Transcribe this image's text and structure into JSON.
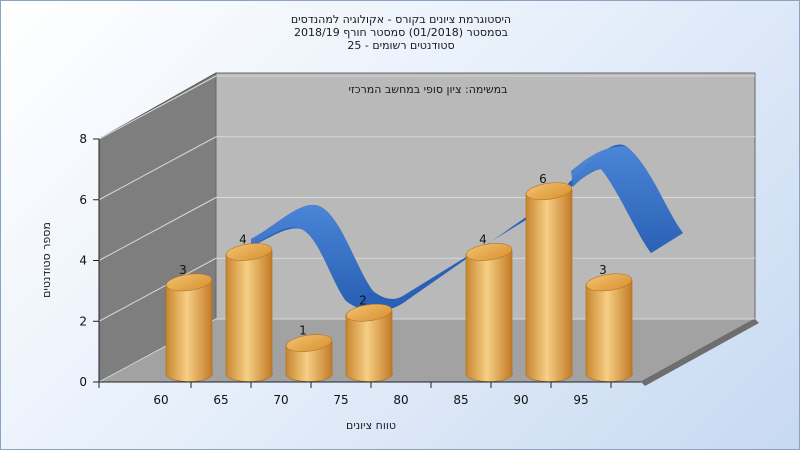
{
  "chart_data": {
    "type": "bar",
    "title_lines": [
      "היסטוגרמת ציונים בקורס - אקולוגיה למהנדסים",
      "בסמסטר  (01/2018)  סמסטר חורף 2018/19",
      "סטודנטים רשומים - 25"
    ],
    "subtitle": "במשימה: ציון סופי במחשב המרכזי",
    "xlabel": "טווח ציונים",
    "ylabel": "מספר סטודנטים",
    "x_ticks": [
      "60",
      "65",
      "70",
      "75",
      "80",
      "85",
      "90",
      "95"
    ],
    "y_ticks": [
      "0",
      "2",
      "4",
      "6",
      "8"
    ],
    "ylim": [
      0,
      8
    ],
    "bars": [
      {
        "x": 60,
        "value": 3,
        "label": "3"
      },
      {
        "x": 65,
        "value": 4,
        "label": "4"
      },
      {
        "x": 70,
        "value": 1,
        "label": "1"
      },
      {
        "x": 75,
        "value": 2,
        "label": "2"
      },
      {
        "x": 85,
        "value": 4,
        "label": "4"
      },
      {
        "x": 90,
        "value": 6,
        "label": "6"
      },
      {
        "x": 95,
        "value": 3,
        "label": "3"
      }
    ],
    "curve_color": "#2f6cc4",
    "bar_color": "#e9a94c",
    "grid": true
  }
}
